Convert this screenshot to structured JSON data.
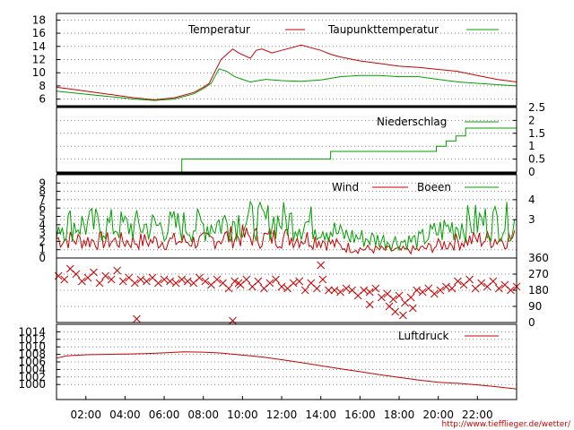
{
  "credit": "http://www.tiefflieger.de/wetter/",
  "colors": {
    "red": "#cc0000",
    "green": "#00a000",
    "grid": "#808080"
  },
  "x_axis": {
    "unit": "hour",
    "range": [
      0.5,
      24.0
    ],
    "ticks": [
      "02:00",
      "04:00",
      "06:00",
      "08:00",
      "10:00",
      "12:00",
      "14:00",
      "16:00",
      "18:00",
      "20:00",
      "22:00"
    ],
    "tick_hours": [
      2,
      4,
      6,
      8,
      10,
      12,
      14,
      16,
      18,
      20,
      22
    ]
  },
  "chart_data": [
    {
      "type": "line",
      "legend": "top-right",
      "ylim": [
        5,
        19
      ],
      "left_ticks": [
        6,
        8,
        10,
        12,
        14,
        16,
        18
      ],
      "series": [
        {
          "name": "Temperatur",
          "color": "red",
          "x": [
            0.5,
            1.5,
            2.5,
            3.5,
            4.5,
            5.5,
            6.5,
            7.5,
            8.0,
            8.3,
            8.6,
            8.9,
            9.2,
            9.5,
            9.8,
            10.1,
            10.4,
            10.7,
            11.0,
            11.5,
            12.0,
            12.5,
            13.0,
            13.5,
            14.0,
            14.5,
            15.0,
            16.0,
            17.0,
            18.0,
            19.0,
            20.0,
            21.0,
            22.0,
            23.0,
            24.0
          ],
          "y": [
            7.8,
            7.4,
            7.0,
            6.6,
            6.2,
            5.9,
            6.2,
            7.0,
            7.8,
            8.4,
            10.2,
            12.0,
            12.8,
            13.6,
            13.0,
            12.6,
            12.2,
            13.4,
            13.6,
            13.0,
            13.4,
            13.8,
            14.2,
            13.8,
            13.4,
            12.8,
            12.4,
            11.8,
            11.4,
            11.0,
            10.8,
            10.5,
            10.2,
            9.6,
            9.0,
            8.6
          ]
        },
        {
          "name": "Taupunkttemperatur",
          "color": "green",
          "x": [
            0.5,
            1.5,
            2.5,
            3.5,
            4.5,
            5.5,
            6.5,
            7.5,
            8.0,
            8.4,
            8.8,
            9.2,
            9.6,
            10.0,
            10.4,
            10.8,
            11.2,
            12.0,
            13.0,
            14.0,
            15.0,
            16.0,
            17.0,
            18.0,
            19.0,
            20.0,
            21.0,
            22.0,
            23.0,
            24.0
          ],
          "y": [
            7.2,
            6.9,
            6.6,
            6.3,
            6.0,
            5.8,
            6.0,
            6.8,
            7.6,
            8.4,
            10.6,
            10.2,
            9.4,
            9.0,
            8.6,
            8.8,
            9.0,
            8.8,
            8.7,
            8.9,
            9.4,
            9.6,
            9.6,
            9.4,
            9.4,
            9.0,
            8.6,
            8.4,
            8.2,
            8.0
          ]
        }
      ]
    },
    {
      "type": "line",
      "legend": "top-right",
      "ylim": [
        0,
        2.5
      ],
      "right_ticks": [
        "2.5",
        "2",
        "1.5",
        "1",
        "0.5",
        "0"
      ],
      "right_tick_values": [
        2.5,
        2,
        1.5,
        1,
        0.5,
        0
      ],
      "series": [
        {
          "name": "Niederschlag",
          "color": "green",
          "step": true,
          "x": [
            0.5,
            6.9,
            6.9,
            14.5,
            14.5,
            19.9,
            19.9,
            20.4,
            20.4,
            20.9,
            20.9,
            21.4,
            21.4,
            24.0
          ],
          "y": [
            0,
            0,
            0.5,
            0.5,
            0.8,
            0.8,
            1.0,
            1.0,
            1.2,
            1.2,
            1.4,
            1.4,
            1.7,
            1.7
          ]
        }
      ]
    },
    {
      "type": "line",
      "legend": "top-right",
      "ylim": [
        0,
        10
      ],
      "left_ticks": [
        0,
        1,
        2,
        3,
        4,
        5,
        6,
        7,
        8,
        9
      ],
      "right_ticks": [
        "4",
        "3"
      ],
      "right_tick_values": [
        7.0,
        4.6
      ],
      "series": [
        {
          "name": "Wind",
          "color": "red",
          "noisy": true,
          "x": [
            0.5,
            2,
            4,
            6,
            8,
            9,
            10,
            11,
            12,
            13,
            14,
            15,
            16,
            17,
            18,
            19,
            20,
            21,
            22,
            23,
            24
          ],
          "y": [
            2.3,
            2.1,
            2.0,
            2.0,
            2.0,
            2.5,
            2.6,
            2.4,
            2.5,
            2.4,
            2.2,
            1.4,
            1.1,
            1.0,
            0.9,
            1.0,
            1.5,
            2.0,
            2.2,
            2.3,
            2.3
          ]
        },
        {
          "name": "Boeen",
          "color": "green",
          "noisy": true,
          "x": [
            0.5,
            2,
            4,
            6,
            8,
            9,
            10,
            11,
            12,
            13,
            14,
            15,
            16,
            17,
            18,
            19,
            20,
            21,
            22,
            23,
            24
          ],
          "y": [
            4.2,
            4.0,
            3.8,
            3.8,
            3.9,
            4.3,
            4.6,
            4.3,
            4.5,
            4.3,
            4.0,
            2.8,
            2.4,
            2.2,
            2.0,
            2.1,
            3.2,
            4.0,
            4.3,
            4.4,
            4.3
          ]
        }
      ]
    },
    {
      "type": "scatter",
      "ylim": [
        0,
        360
      ],
      "right_ticks": [
        "360",
        "270",
        "180",
        "90",
        "0"
      ],
      "right_tick_values": [
        360,
        270,
        180,
        90,
        0
      ],
      "series": [
        {
          "name": "",
          "color": "red",
          "marker": "x",
          "x": [
            0.6,
            0.9,
            1.2,
            1.5,
            1.8,
            2.1,
            2.4,
            2.7,
            3.0,
            3.3,
            3.6,
            3.9,
            4.2,
            4.5,
            4.8,
            5.1,
            5.4,
            5.7,
            6.0,
            6.3,
            6.6,
            6.9,
            7.2,
            7.5,
            7.8,
            8.1,
            8.4,
            8.7,
            9.0,
            9.3,
            9.6,
            9.9,
            10.2,
            10.5,
            10.8,
            11.1,
            11.4,
            11.7,
            12.0,
            12.3,
            12.6,
            12.9,
            13.2,
            13.5,
            13.8,
            14.1,
            14.4,
            14.7,
            15.0,
            15.3,
            15.6,
            15.9,
            16.2,
            16.5,
            16.8,
            17.1,
            17.4,
            17.7,
            18.0,
            18.3,
            18.6,
            18.9,
            19.2,
            19.5,
            19.8,
            20.1,
            20.4,
            20.7,
            21.0,
            21.3,
            21.6,
            21.9,
            22.2,
            22.5,
            22.8,
            23.1,
            23.4,
            23.7,
            24.0,
            4.6,
            9.5,
            9.8,
            14.0,
            17.8,
            18.2,
            16.5,
            17.5,
            18.7
          ],
          "y": [
            260,
            240,
            300,
            270,
            230,
            250,
            280,
            220,
            260,
            240,
            290,
            230,
            250,
            220,
            240,
            230,
            250,
            220,
            240,
            230,
            220,
            240,
            230,
            220,
            250,
            230,
            210,
            240,
            220,
            190,
            230,
            210,
            240,
            200,
            230,
            190,
            220,
            240,
            200,
            190,
            220,
            230,
            180,
            220,
            190,
            240,
            180,
            180,
            170,
            190,
            180,
            150,
            180,
            170,
            190,
            140,
            160,
            130,
            150,
            110,
            140,
            180,
            170,
            190,
            160,
            180,
            200,
            190,
            230,
            210,
            240,
            190,
            220,
            200,
            230,
            190,
            210,
            180,
            200,
            20,
            10,
            220,
            320,
            60,
            40,
            100,
            90,
            80
          ]
        }
      ]
    },
    {
      "type": "line",
      "legend": "top-right",
      "ylim": [
        996,
        1016
      ],
      "left_ticks": [
        1000,
        1002,
        1004,
        1006,
        1008,
        1010,
        1012,
        1014
      ],
      "series": [
        {
          "name": "Luftdruck",
          "color": "red",
          "x": [
            0.5,
            1,
            2,
            3,
            4,
            5,
            6,
            7,
            8,
            9,
            10,
            11,
            12,
            13,
            14,
            15,
            16,
            17,
            18,
            19,
            20,
            21,
            22,
            23,
            24
          ],
          "y": [
            1007.0,
            1007.6,
            1007.9,
            1008.0,
            1008.1,
            1008.2,
            1008.4,
            1008.7,
            1008.6,
            1008.3,
            1007.8,
            1007.3,
            1006.6,
            1005.8,
            1005.0,
            1004.2,
            1003.4,
            1002.6,
            1001.9,
            1001.2,
            1000.6,
            1000.3,
            999.9,
            999.4,
            998.8
          ]
        }
      ]
    }
  ]
}
